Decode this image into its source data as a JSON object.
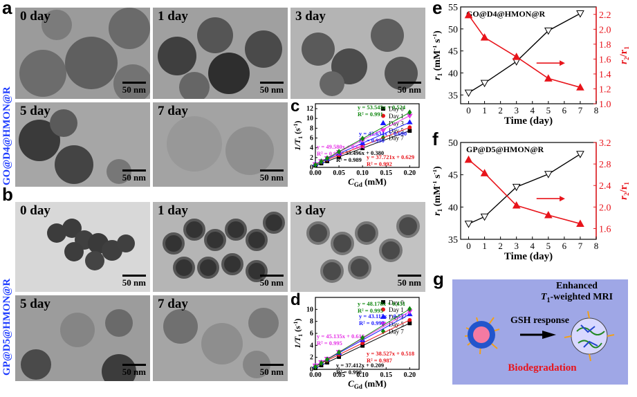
{
  "panel_labels": {
    "a": "a",
    "b": "b",
    "c": "c",
    "d": "d",
    "e": "e",
    "f": "f",
    "g": "g"
  },
  "side_labels": {
    "a": "GO@D4@HMON@R",
    "b": "GP@D5@HMON@R"
  },
  "tem_a": [
    {
      "day": "0 day",
      "scale": "50 nm"
    },
    {
      "day": "1 day",
      "scale": "50 nm"
    },
    {
      "day": "3 day",
      "scale": "50 nm"
    },
    {
      "day": "5 day",
      "scale": "50 nm"
    },
    {
      "day": "7 day",
      "scale": "50 nm"
    }
  ],
  "tem_b": [
    {
      "day": "0 day",
      "scale": "50 nm"
    },
    {
      "day": "1 day",
      "scale": "50 nm"
    },
    {
      "day": "3 day",
      "scale": "50 nm"
    },
    {
      "day": "5 day",
      "scale": "50 nm"
    },
    {
      "day": "7 day",
      "scale": "50 nm"
    }
  ],
  "colors": {
    "black": "#000000",
    "red": "#e8141b",
    "blue": "#1a1aff",
    "magenta": "#e633e6",
    "green": "#118811",
    "bg_g": "#9fa7e6"
  },
  "chart_data": [
    {
      "panel": "c",
      "type": "scatter",
      "xlabel": "C",
      "xlabel_sub": "Gd",
      "xlabel_unit": " (mM)",
      "ylabel": "1/T",
      "ylabel_sub": "1",
      "ylabel_unit": " (s",
      "ylabel_sup": "-1",
      "ylabel_close": ")",
      "xlim": [
        0,
        0.22
      ],
      "ylim": [
        0,
        13
      ],
      "xticks": [
        "0.00",
        "0.05",
        "0.10",
        "0.15",
        "0.20"
      ],
      "yticks": [
        "0",
        "2",
        "4",
        "6",
        "8",
        "10",
        "12"
      ],
      "x": [
        0,
        0.0125,
        0.025,
        0.05,
        0.1,
        0.2
      ],
      "series": [
        {
          "name": "Day 0",
          "color": "#000000",
          "marker": "square",
          "slope": 35.496,
          "intercept": 0.38,
          "eq": "y = 35.496x + 0.380",
          "r2": "R² = 0.989"
        },
        {
          "name": "Day 1",
          "color": "#e8141b",
          "marker": "circle",
          "slope": 37.721,
          "intercept": 0.629,
          "eq": "y = 37.721x + 0.629",
          "r2": "R² = 0.992"
        },
        {
          "name": "Day 3",
          "color": "#1a1aff",
          "marker": "triangle",
          "slope": 42.634,
          "intercept": 0.69,
          "eq": "y = 42.634x + 0.690",
          "r2": "R² = 0.990"
        },
        {
          "name": "Day 5",
          "color": "#e633e6",
          "marker": "triangle-down",
          "slope": 49.58,
          "intercept": 0.634,
          "eq": "y = 49.580x + 0.634",
          "r2": "R² = 0.993"
        },
        {
          "name": "Day 7",
          "color": "#118811",
          "marker": "diamond",
          "slope": 53.545,
          "intercept": 0.524,
          "eq": "y = 53.545x + 0.524",
          "r2": "R² = 0.991"
        }
      ]
    },
    {
      "panel": "d",
      "type": "scatter",
      "xlabel": "C",
      "xlabel_sub": "Gd",
      "xlabel_unit": " (mM)",
      "ylabel": "1/T",
      "ylabel_sub": "1",
      "ylabel_unit": " (s",
      "ylabel_sup": "-1",
      "ylabel_close": ")",
      "xlim": [
        0,
        0.22
      ],
      "ylim": [
        0,
        12
      ],
      "xticks": [
        "0.00",
        "0.05",
        "0.10",
        "0.15",
        "0.20"
      ],
      "yticks": [
        "0",
        "2",
        "4",
        "6",
        "8",
        "10"
      ],
      "x": [
        0,
        0.0125,
        0.025,
        0.05,
        0.1,
        0.2
      ],
      "series": [
        {
          "name": "Day 0",
          "color": "#000000",
          "marker": "square",
          "slope": 37.412,
          "intercept": 0.209,
          "eq": "y = 37.412x + 0.209",
          "r2": "R² = 0.990"
        },
        {
          "name": "Day 1",
          "color": "#e8141b",
          "marker": "circle",
          "slope": 38.527,
          "intercept": 0.518,
          "eq": "y = 38.527x + 0.518",
          "r2": "R² = 0.987"
        },
        {
          "name": "Day 3",
          "color": "#1a1aff",
          "marker": "triangle",
          "slope": 43.112,
          "intercept": 0.577,
          "eq": "y = 43.112x + 0.577",
          "r2": "R² = 0.997"
        },
        {
          "name": "Day 5",
          "color": "#e633e6",
          "marker": "triangle-down",
          "slope": 45.135,
          "intercept": 0.618,
          "eq": "y = 45.135x + 0.618",
          "r2": "R² = 0.995"
        },
        {
          "name": "Day 7",
          "color": "#118811",
          "marker": "diamond",
          "slope": 48.178,
          "intercept": 0.431,
          "eq": "y = 48.178x + 0.431",
          "r2": "R² = 0.995"
        }
      ]
    },
    {
      "panel": "e",
      "type": "line",
      "title": "GO@D4@HMON@R",
      "xlabel": "Time (day)",
      "x": [
        0,
        1,
        3,
        5,
        7
      ],
      "xlim": [
        -0.5,
        8
      ],
      "xticks": [
        "0",
        "1",
        "2",
        "3",
        "4",
        "5",
        "6",
        "7",
        "8"
      ],
      "left": {
        "label": "r",
        "sub": "1",
        "unit": " (mM",
        "sup1": "-1",
        "mid": " s",
        "sup2": "-1",
        "close": ")",
        "values": [
          35.5,
          37.7,
          42.6,
          49.6,
          53.5
        ],
        "ylim": [
          33,
          55
        ],
        "ticks": [
          "35",
          "40",
          "45",
          "50",
          "55"
        ],
        "color": "#000000"
      },
      "right": {
        "label": "r",
        "sub": "2",
        "slash": "/r",
        "sub2": "1",
        "values": [
          2.19,
          1.89,
          1.63,
          1.34,
          1.22
        ],
        "ylim": [
          1.0,
          2.3
        ],
        "ticks": [
          "1.0",
          "1.2",
          "1.4",
          "1.6",
          "1.8",
          "2.0",
          "2.2"
        ],
        "color": "#e8141b"
      }
    },
    {
      "panel": "f",
      "type": "line",
      "title": "GP@D5@HMON@R",
      "xlabel": "Time (day)",
      "x": [
        0,
        1,
        3,
        5,
        7
      ],
      "xlim": [
        -0.5,
        8
      ],
      "xticks": [
        "0",
        "1",
        "2",
        "3",
        "4",
        "5",
        "6",
        "7",
        "8"
      ],
      "left": {
        "label": "r",
        "sub": "1",
        "unit": " (mM",
        "sup1": "-1",
        "mid": " s",
        "sup2": "-1",
        "close": ")",
        "values": [
          37.4,
          38.5,
          43.1,
          45.1,
          48.2
        ],
        "ylim": [
          35,
          50
        ],
        "ticks": [
          "35",
          "40",
          "45",
          "50"
        ],
        "color": "#000000"
      },
      "right": {
        "label": "r",
        "sub": "2",
        "slash": "/r",
        "sub2": "1",
        "values": [
          2.88,
          2.63,
          2.03,
          1.85,
          1.69
        ],
        "ylim": [
          1.4,
          3.2
        ],
        "ticks": [
          "1.6",
          "2.0",
          "2.4",
          "2.8",
          "3.2"
        ],
        "color": "#e8141b"
      }
    }
  ],
  "panel_g": {
    "title_line1": "Enhanced",
    "title_T": "T",
    "title_sub": "1",
    "title_rest": "-weighted MRI",
    "arrow_label": "GSH response",
    "bottom": "Biodegradation"
  }
}
